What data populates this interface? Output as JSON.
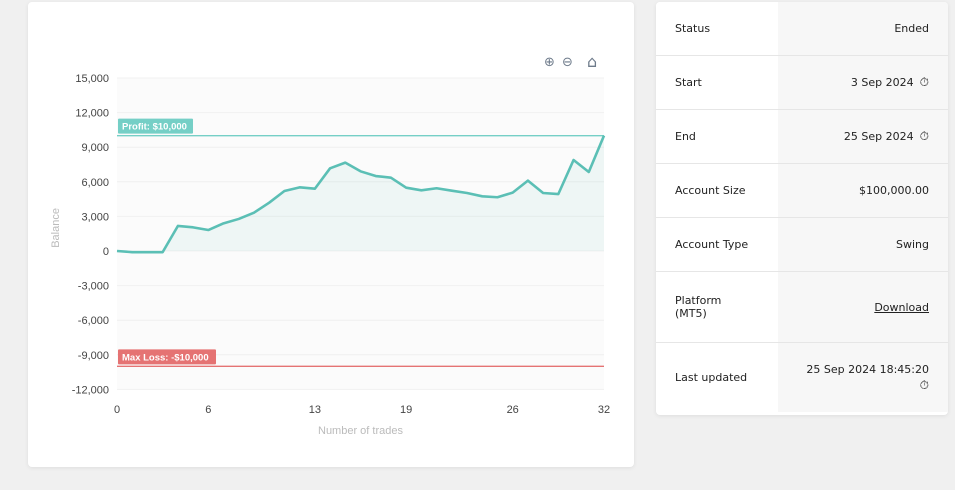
{
  "chart_data": {
    "type": "line",
    "xlabel": "Number of trades",
    "ylabel": "Balance",
    "x_ticks": [
      0,
      6,
      13,
      19,
      26,
      32
    ],
    "y_ticks": [
      15000,
      12000,
      9000,
      6000,
      3000,
      0,
      -3000,
      -6000,
      -9000,
      -12000
    ],
    "y_tick_labels": [
      "15,000",
      "12,000",
      "9,000",
      "6,000",
      "3,000",
      "0",
      "-3,000",
      "-6,000",
      "-9,000",
      "-12,000"
    ],
    "xlim": [
      0,
      32
    ],
    "ylim": [
      -12000,
      15000
    ],
    "series": [
      {
        "name": "Balance",
        "color": "#5bbfb5",
        "x": [
          0,
          1,
          2,
          3,
          4,
          5,
          6,
          7,
          8,
          9,
          10,
          11,
          12,
          13,
          14,
          15,
          16,
          17,
          18,
          19,
          20,
          21,
          22,
          23,
          24,
          25,
          26,
          27,
          28,
          29,
          30,
          31,
          32
        ],
        "values": [
          0,
          -100,
          -100,
          -100,
          2170,
          2050,
          1820,
          2400,
          2780,
          3320,
          4190,
          5200,
          5520,
          5400,
          7170,
          7660,
          6910,
          6500,
          6360,
          5490,
          5260,
          5440,
          5230,
          5030,
          4740,
          4660,
          5060,
          6100,
          5030,
          4940,
          7890,
          6850,
          10000
        ]
      }
    ],
    "annotations": [
      {
        "label": "Profit: $10,000",
        "y": 10000,
        "color": "#75cfc6"
      },
      {
        "label": "Max Loss: -$10,000",
        "y": -10000,
        "color": "#e57373"
      }
    ]
  },
  "toolbar": {
    "zoom_in": "⊕",
    "zoom_out": "⊖",
    "home": "⌂"
  },
  "info": [
    {
      "label": "Status",
      "value": "Ended"
    },
    {
      "label": "Start",
      "value": "3 Sep 2024",
      "icon": "timer-icon"
    },
    {
      "label": "End",
      "value": "25 Sep 2024",
      "icon": "timer-icon"
    },
    {
      "label": "Account Size",
      "value": "$100,000.00"
    },
    {
      "label": "Account Type",
      "value": "Swing"
    },
    {
      "label": "Platform (MT5)",
      "value": "Download",
      "link": true
    },
    {
      "label": "Last updated",
      "value": "25 Sep 2024 18:45:20",
      "icon": "timer-icon"
    }
  ]
}
